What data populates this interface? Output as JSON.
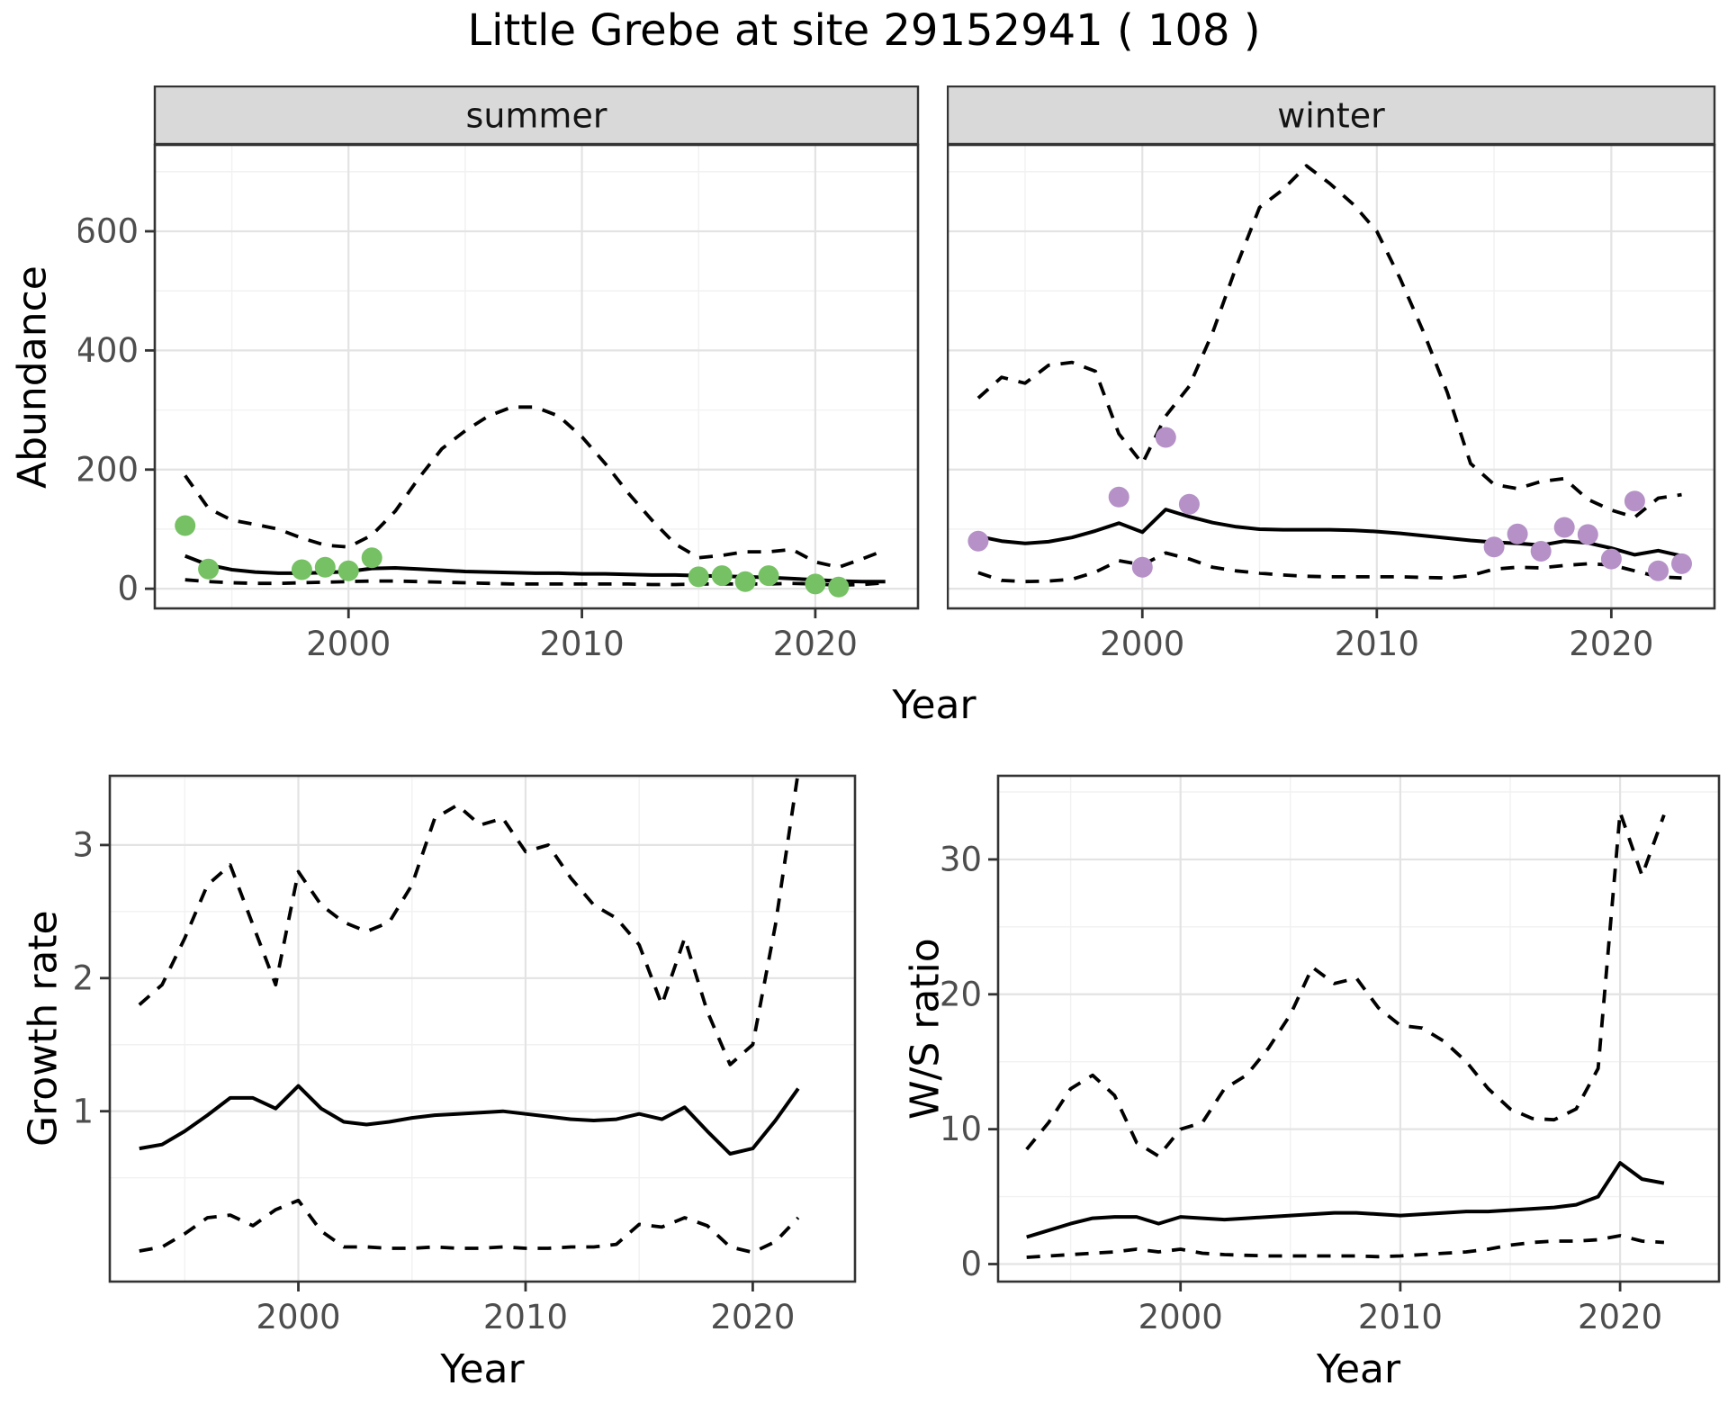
{
  "title": "Little Grebe at site 29152941 ( 108 )",
  "axis_labels": {
    "year": "Year",
    "abundance": "Abundance",
    "growth": "Growth rate",
    "ws": "W/S ratio"
  },
  "colors": {
    "summer_points": "#75c163",
    "winter_points": "#b591c7",
    "fit_line": "#000000",
    "ci_line": "#000000",
    "panel_border": "#333333",
    "strip_fill": "#d9d9d9",
    "grid_major": "#e3e3e3",
    "grid_minor": "#f1f1f1",
    "tick_text": "#4d4d4d"
  },
  "chart_data": [
    {
      "key": "summer",
      "type": "line",
      "strip": "summer",
      "ylabel": "Abundance",
      "xlabel": "Year",
      "x_domain": [
        1991.7,
        2024.4
      ],
      "y_domain": [
        -33,
        745
      ],
      "x_ticks": [
        {
          "v": 2000,
          "label": "2000"
        },
        {
          "v": 2010,
          "label": "2010"
        },
        {
          "v": 2020,
          "label": "2020"
        }
      ],
      "x_minor": [
        1995,
        2005,
        2015
      ],
      "y_ticks": [
        {
          "v": 0,
          "label": "0"
        },
        {
          "v": 200,
          "label": "200"
        },
        {
          "v": 400,
          "label": "400"
        },
        {
          "v": 600,
          "label": "600"
        }
      ],
      "y_minor": [
        100,
        300,
        500,
        700
      ],
      "show_y_labels": true,
      "years": [
        1993,
        1994,
        1995,
        1996,
        1997,
        1998,
        1999,
        2000,
        2001,
        2002,
        2003,
        2004,
        2005,
        2006,
        2007,
        2008,
        2009,
        2010,
        2011,
        2012,
        2013,
        2014,
        2015,
        2016,
        2017,
        2018,
        2019,
        2020,
        2021,
        2022,
        2023
      ],
      "series": [
        {
          "name": "fit",
          "style": "solid",
          "values": [
            55,
            40,
            32,
            28,
            26,
            26,
            27,
            29,
            34,
            35,
            33,
            31,
            29,
            28,
            27,
            26,
            26,
            25,
            25,
            24,
            23,
            23,
            22,
            21,
            20,
            19,
            17,
            15,
            13,
            12,
            12
          ]
        },
        {
          "name": "upper_ci",
          "style": "dashed",
          "values": [
            190,
            135,
            115,
            108,
            100,
            85,
            73,
            70,
            90,
            130,
            185,
            235,
            265,
            290,
            305,
            305,
            290,
            255,
            210,
            160,
            115,
            75,
            52,
            56,
            62,
            62,
            66,
            45,
            36,
            50,
            65
          ]
        },
        {
          "name": "lower_ci",
          "style": "dashed",
          "values": [
            15,
            12,
            10,
            9,
            9,
            10,
            11,
            12,
            13,
            13,
            12,
            11,
            10,
            9,
            8,
            8,
            8,
            8,
            8,
            8,
            7,
            7,
            8,
            8,
            8,
            8,
            9,
            8,
            6,
            7,
            10
          ]
        }
      ],
      "points": {
        "name": "observed_counts",
        "color_key": "summer_points",
        "data": [
          [
            1993,
            106
          ],
          [
            1994,
            33
          ],
          [
            1998,
            32
          ],
          [
            1999,
            36
          ],
          [
            2000,
            30
          ],
          [
            2001,
            52
          ],
          [
            2015,
            20
          ],
          [
            2016,
            22
          ],
          [
            2017,
            12
          ],
          [
            2018,
            22
          ],
          [
            2020,
            8
          ],
          [
            2021,
            3
          ]
        ]
      }
    },
    {
      "key": "winter",
      "type": "line",
      "strip": "winter",
      "ylabel": "Abundance",
      "xlabel": "Year",
      "x_domain": [
        1991.7,
        2024.4
      ],
      "y_domain": [
        -33,
        745
      ],
      "x_ticks": [
        {
          "v": 2000,
          "label": "2000"
        },
        {
          "v": 2010,
          "label": "2010"
        },
        {
          "v": 2020,
          "label": "2020"
        }
      ],
      "x_minor": [
        1995,
        2005,
        2015
      ],
      "y_ticks": [
        {
          "v": 0,
          "label": "0"
        },
        {
          "v": 200,
          "label": "200"
        },
        {
          "v": 400,
          "label": "400"
        },
        {
          "v": 600,
          "label": "600"
        }
      ],
      "y_minor": [
        100,
        300,
        500,
        700
      ],
      "show_y_labels": false,
      "years": [
        1993,
        1994,
        1995,
        1996,
        1997,
        1998,
        1999,
        2000,
        2001,
        2002,
        2003,
        2004,
        2005,
        2006,
        2007,
        2008,
        2009,
        2010,
        2011,
        2012,
        2013,
        2014,
        2015,
        2016,
        2017,
        2018,
        2019,
        2020,
        2021,
        2022,
        2023
      ],
      "series": [
        {
          "name": "fit",
          "style": "solid",
          "values": [
            88,
            80,
            76,
            79,
            86,
            97,
            110,
            95,
            133,
            121,
            111,
            104,
            100,
            99,
            99,
            99,
            98,
            96,
            93,
            89,
            85,
            81,
            78,
            76,
            73,
            80,
            77,
            68,
            57,
            64,
            55
          ]
        },
        {
          "name": "upper_ci",
          "style": "dashed",
          "values": [
            320,
            355,
            345,
            375,
            380,
            365,
            260,
            210,
            290,
            340,
            430,
            540,
            640,
            670,
            710,
            680,
            645,
            600,
            520,
            430,
            330,
            210,
            175,
            168,
            180,
            185,
            150,
            132,
            120,
            152,
            158
          ]
        },
        {
          "name": "lower_ci",
          "style": "dashed",
          "values": [
            27,
            14,
            12,
            13,
            16,
            28,
            47,
            40,
            60,
            50,
            36,
            30,
            26,
            23,
            21,
            20,
            20,
            20,
            20,
            19,
            18,
            22,
            33,
            36,
            35,
            39,
            42,
            40,
            30,
            20,
            18
          ]
        }
      ],
      "points": {
        "name": "observed_counts",
        "color_key": "winter_points",
        "data": [
          [
            1993,
            80
          ],
          [
            1999,
            154
          ],
          [
            2000,
            36
          ],
          [
            2001,
            254
          ],
          [
            2002,
            142
          ],
          [
            2015,
            70
          ],
          [
            2016,
            92
          ],
          [
            2017,
            63
          ],
          [
            2018,
            103
          ],
          [
            2019,
            91
          ],
          [
            2020,
            50
          ],
          [
            2021,
            147
          ],
          [
            2022,
            30
          ],
          [
            2023,
            42
          ]
        ]
      }
    },
    {
      "key": "growth",
      "type": "line",
      "strip": null,
      "ylabel": "Growth rate",
      "xlabel": "Year",
      "x_domain": [
        1991.7,
        2024.5
      ],
      "y_domain": [
        -0.28,
        3.52
      ],
      "x_ticks": [
        {
          "v": 2000,
          "label": "2000"
        },
        {
          "v": 2010,
          "label": "2010"
        },
        {
          "v": 2020,
          "label": "2020"
        }
      ],
      "x_minor": [
        1995,
        2005,
        2015
      ],
      "y_ticks": [
        {
          "v": 1,
          "label": "1"
        },
        {
          "v": 2,
          "label": "2"
        },
        {
          "v": 3,
          "label": "3"
        }
      ],
      "y_minor": [
        0.5,
        1.5,
        2.5,
        3.5
      ],
      "show_y_labels": true,
      "years": [
        1993,
        1994,
        1995,
        1996,
        1997,
        1998,
        1999,
        2000,
        2001,
        2002,
        2003,
        2004,
        2005,
        2006,
        2007,
        2008,
        2009,
        2010,
        2011,
        2012,
        2013,
        2014,
        2015,
        2016,
        2017,
        2018,
        2019,
        2020,
        2021,
        2022
      ],
      "series": [
        {
          "name": "fit",
          "style": "solid",
          "values": [
            0.72,
            0.75,
            0.85,
            0.97,
            1.1,
            1.1,
            1.02,
            1.19,
            1.02,
            0.92,
            0.9,
            0.92,
            0.95,
            0.97,
            0.98,
            0.99,
            1.0,
            0.98,
            0.96,
            0.94,
            0.93,
            0.94,
            0.98,
            0.94,
            1.03,
            0.85,
            0.68,
            0.72,
            0.93,
            1.17
          ]
        },
        {
          "name": "upper_ci",
          "style": "dashed",
          "values": [
            1.8,
            1.95,
            2.3,
            2.7,
            2.85,
            2.4,
            1.95,
            2.8,
            2.55,
            2.42,
            2.35,
            2.42,
            2.7,
            3.2,
            3.3,
            3.15,
            3.2,
            2.95,
            3.0,
            2.75,
            2.55,
            2.45,
            2.25,
            1.8,
            2.3,
            1.75,
            1.35,
            1.5,
            2.4,
            3.55
          ]
        },
        {
          "name": "lower_ci",
          "style": "dashed",
          "values": [
            -0.05,
            -0.02,
            0.08,
            0.2,
            0.22,
            0.14,
            0.26,
            0.33,
            0.1,
            -0.02,
            -0.02,
            -0.03,
            -0.03,
            -0.02,
            -0.03,
            -0.03,
            -0.02,
            -0.03,
            -0.03,
            -0.02,
            -0.02,
            0.0,
            0.15,
            0.13,
            0.2,
            0.14,
            -0.02,
            -0.06,
            0.02,
            0.2
          ]
        }
      ],
      "points": null
    },
    {
      "key": "ws",
      "type": "line",
      "strip": null,
      "ylabel": "W/S ratio",
      "xlabel": "Year",
      "x_domain": [
        1991.7,
        2024.5
      ],
      "y_domain": [
        -1.3,
        36.2
      ],
      "x_ticks": [
        {
          "v": 2000,
          "label": "2000"
        },
        {
          "v": 2010,
          "label": "2010"
        },
        {
          "v": 2020,
          "label": "2020"
        }
      ],
      "x_minor": [
        1995,
        2005,
        2015
      ],
      "y_ticks": [
        {
          "v": 0,
          "label": "0"
        },
        {
          "v": 10,
          "label": "10"
        },
        {
          "v": 20,
          "label": "20"
        },
        {
          "v": 30,
          "label": "30"
        }
      ],
      "y_minor": [
        5,
        15,
        25,
        35
      ],
      "show_y_labels": true,
      "years": [
        1993,
        1994,
        1995,
        1996,
        1997,
        1998,
        1999,
        2000,
        2001,
        2002,
        2003,
        2004,
        2005,
        2006,
        2007,
        2008,
        2009,
        2010,
        2011,
        2012,
        2013,
        2014,
        2015,
        2016,
        2017,
        2018,
        2019,
        2020,
        2021,
        2022
      ],
      "series": [
        {
          "name": "fit",
          "style": "solid",
          "values": [
            2.0,
            2.5,
            3.0,
            3.4,
            3.5,
            3.5,
            3.0,
            3.5,
            3.4,
            3.3,
            3.4,
            3.5,
            3.6,
            3.7,
            3.8,
            3.8,
            3.7,
            3.6,
            3.7,
            3.8,
            3.9,
            3.9,
            4.0,
            4.1,
            4.2,
            4.4,
            5.0,
            7.5,
            6.3,
            6.0
          ]
        },
        {
          "name": "upper_ci",
          "style": "dashed",
          "values": [
            8.5,
            10.5,
            13.0,
            14.0,
            12.5,
            9.0,
            8.0,
            10.0,
            10.5,
            13.0,
            14.0,
            16.0,
            18.5,
            22.0,
            20.8,
            21.2,
            19.0,
            17.7,
            17.5,
            16.5,
            15.0,
            13.0,
            11.5,
            10.8,
            10.7,
            11.5,
            14.5,
            33.5,
            28.8,
            33.3
          ]
        },
        {
          "name": "lower_ci",
          "style": "dashed",
          "values": [
            0.5,
            0.6,
            0.7,
            0.8,
            0.9,
            1.1,
            0.9,
            1.1,
            0.8,
            0.7,
            0.65,
            0.6,
            0.6,
            0.6,
            0.6,
            0.6,
            0.55,
            0.6,
            0.7,
            0.8,
            0.9,
            1.1,
            1.4,
            1.6,
            1.7,
            1.7,
            1.8,
            2.1,
            1.7,
            1.6
          ]
        }
      ],
      "points": null
    }
  ]
}
